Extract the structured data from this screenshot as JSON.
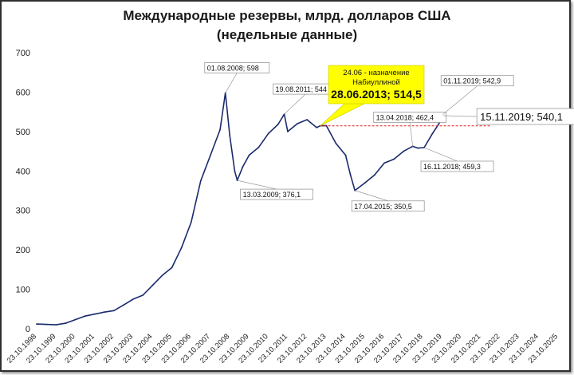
{
  "chart_data": {
    "type": "line",
    "title_line1": "Международные резервы, млрд. долларов США",
    "title_line2": "(недельные данные)",
    "xlabel": "",
    "ylabel": "",
    "ylim": [
      0,
      700
    ],
    "yticks": [
      "0",
      "100",
      "200",
      "300",
      "400",
      "500",
      "600",
      "700"
    ],
    "x_tick_labels": [
      "23.10.1998",
      "23.10.1999",
      "23.10.2000",
      "23.10.2001",
      "23.10.2002",
      "23.10.2003",
      "23.10.2004",
      "23.10.2005",
      "23.10.2006",
      "23.10.2007",
      "23.10.2008",
      "23.10.2009",
      "23.10.2010",
      "23.10.2011",
      "23.10.2012",
      "23.10.2013",
      "23.10.2014",
      "23.10.2015",
      "23.10.2016",
      "23.10.2017",
      "23.10.2018",
      "23.10.2019",
      "23.10.2020",
      "23.10.2021",
      "23.10.2022",
      "23.10.2023",
      "23.10.2024",
      "23.10.2025"
    ],
    "grid": false,
    "series": [
      {
        "color": "#1a2a6c",
        "x": [
          "1998-10-23",
          "1999-04-23",
          "1999-10-23",
          "2000-04-23",
          "2000-10-23",
          "2001-04-23",
          "2001-10-23",
          "2002-04-23",
          "2002-10-23",
          "2003-04-23",
          "2003-10-23",
          "2004-04-23",
          "2004-10-23",
          "2005-04-23",
          "2005-10-23",
          "2006-04-23",
          "2006-10-23",
          "2007-04-23",
          "2007-10-23",
          "2008-04-23",
          "2008-08-01",
          "2008-10-23",
          "2009-01-23",
          "2009-03-13",
          "2009-06-23",
          "2009-10-23",
          "2010-04-23",
          "2010-10-23",
          "2011-04-23",
          "2011-08-19",
          "2011-10-23",
          "2012-04-23",
          "2012-10-23",
          "2013-04-23",
          "2013-06-28",
          "2013-10-23",
          "2014-04-23",
          "2014-10-23",
          "2015-01-23",
          "2015-04-17",
          "2015-10-23",
          "2016-04-23",
          "2016-10-23",
          "2017-04-23",
          "2017-10-23",
          "2018-04-13",
          "2018-07-23",
          "2018-11-16",
          "2019-04-23",
          "2019-08-23",
          "2019-11-01",
          "2019-11-15"
        ],
        "values": [
          12,
          11,
          10,
          14,
          23,
          32,
          37,
          42,
          46,
          60,
          75,
          85,
          110,
          135,
          155,
          205,
          270,
          375,
          440,
          505,
          598,
          490,
          400,
          376,
          410,
          440,
          460,
          495,
          518,
          544,
          500,
          520,
          530,
          510,
          514.5,
          515,
          470,
          440,
          390,
          350.5,
          370,
          390,
          420,
          430,
          450,
          462.4,
          458,
          459.3,
          495,
          520,
          542.9,
          540.1
        ]
      }
    ],
    "annotations": [
      {
        "label": "01.08.2008; 598"
      },
      {
        "label": "13.03.2009; 376,1"
      },
      {
        "label": "19.08.2011; 544"
      },
      {
        "label": "17.04.2015; 350,5"
      },
      {
        "label": "13.04.2018; 462,4"
      },
      {
        "label": "16.11.2018; 459,3"
      },
      {
        "label": "01.11.2019; 542,9"
      },
      {
        "label": "15.11.2019; 540,1"
      }
    ],
    "callout": {
      "line1": "24.06 - назначение",
      "line2": "Набиуллиной",
      "line3": "28.06.2013; 514,5",
      "background": "#ffff00"
    },
    "reference_line": {
      "value": 514.5,
      "color": "#e02020"
    }
  }
}
